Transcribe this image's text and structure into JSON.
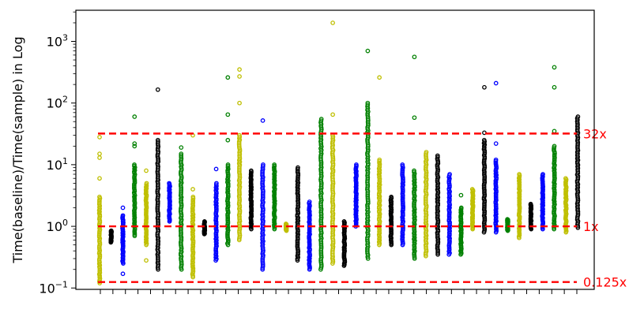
{
  "chart_data": {
    "type": "scatter",
    "title": "",
    "xlabel": "",
    "ylabel": "Time(baseline)/Time(sample) in Log",
    "yscale": "log",
    "ylim": [
      0.095,
      3200
    ],
    "y_ticks": [
      {
        "value": 0.1,
        "base": "10",
        "exp": "−1"
      },
      {
        "value": 1,
        "base": "10",
        "exp": "0"
      },
      {
        "value": 10,
        "base": "10",
        "exp": "1"
      },
      {
        "value": 100,
        "base": "10",
        "exp": "2"
      },
      {
        "value": 1000,
        "base": "10",
        "exp": "3"
      }
    ],
    "x_tick_count": 39,
    "x_tick_labels": "none",
    "marker": "open-circle",
    "grid": false,
    "legend": "none",
    "colors": {
      "y": "#bfbf00",
      "b": "#0000ff",
      "g": "#008000",
      "k": "#000000",
      "reference": "#ff0000"
    },
    "reference_lines": [
      {
        "value": 32,
        "label": "32x"
      },
      {
        "value": 1,
        "label": "1x"
      },
      {
        "value": 0.125,
        "label": "0.125x"
      }
    ],
    "series": [
      {
        "color": "y",
        "min": 0.12,
        "max": 3,
        "outliers": [
          6,
          13,
          15,
          28
        ]
      },
      {
        "color": "k",
        "min": 0.55,
        "max": 0.85,
        "outliers": []
      },
      {
        "color": "b",
        "min": 0.25,
        "max": 1.5,
        "outliers": [
          0.17,
          2
        ]
      },
      {
        "color": "g",
        "min": 0.7,
        "max": 10,
        "outliers": [
          20,
          22,
          60
        ]
      },
      {
        "color": "y",
        "min": 0.5,
        "max": 5,
        "outliers": [
          0.28,
          8
        ]
      },
      {
        "color": "k",
        "min": 0.2,
        "max": 25,
        "outliers": [
          165
        ]
      },
      {
        "color": "b",
        "min": 1.2,
        "max": 5,
        "outliers": []
      },
      {
        "color": "g",
        "min": 0.2,
        "max": 15,
        "outliers": [
          19
        ]
      },
      {
        "color": "y",
        "min": 0.15,
        "max": 3,
        "outliers": [
          4,
          30
        ]
      },
      {
        "color": "k",
        "min": 0.75,
        "max": 1.2,
        "outliers": []
      },
      {
        "color": "b",
        "min": 0.28,
        "max": 5,
        "outliers": [
          8.5
        ]
      },
      {
        "color": "g",
        "min": 0.5,
        "max": 10,
        "outliers": [
          25,
          65,
          260
        ]
      },
      {
        "color": "y",
        "min": 0.6,
        "max": 30,
        "outliers": [
          100,
          270,
          350
        ]
      },
      {
        "color": "k",
        "min": 0.9,
        "max": 8,
        "outliers": []
      },
      {
        "color": "b",
        "min": 0.2,
        "max": 10,
        "outliers": [
          52
        ]
      },
      {
        "color": "g",
        "min": 0.9,
        "max": 10,
        "outliers": []
      },
      {
        "color": "y",
        "min": 0.85,
        "max": 1.1,
        "outliers": []
      },
      {
        "color": "k",
        "min": 0.28,
        "max": 9,
        "outliers": []
      },
      {
        "color": "b",
        "min": 0.2,
        "max": 2.5,
        "outliers": []
      },
      {
        "color": "g",
        "min": 0.2,
        "max": 55,
        "outliers": []
      },
      {
        "color": "y",
        "min": 0.25,
        "max": 30,
        "outliers": [
          65,
          2000
        ]
      },
      {
        "color": "k",
        "min": 0.23,
        "max": 1.2,
        "outliers": []
      },
      {
        "color": "b",
        "min": 1.0,
        "max": 10,
        "outliers": []
      },
      {
        "color": "g",
        "min": 0.3,
        "max": 100,
        "outliers": [
          700
        ]
      },
      {
        "color": "y",
        "min": 0.5,
        "max": 12,
        "outliers": [
          260
        ]
      },
      {
        "color": "k",
        "min": 0.5,
        "max": 3,
        "outliers": []
      },
      {
        "color": "b",
        "min": 0.5,
        "max": 10,
        "outliers": []
      },
      {
        "color": "g",
        "min": 0.3,
        "max": 8,
        "outliers": [
          58,
          560
        ]
      },
      {
        "color": "y",
        "min": 0.33,
        "max": 16,
        "outliers": []
      },
      {
        "color": "k",
        "min": 0.35,
        "max": 14,
        "outliers": []
      },
      {
        "color": "b",
        "min": 0.35,
        "max": 7,
        "outliers": []
      },
      {
        "color": "g",
        "min": 0.35,
        "max": 2,
        "outliers": [
          3.2
        ]
      },
      {
        "color": "y",
        "min": 0.9,
        "max": 4,
        "outliers": []
      },
      {
        "color": "k",
        "min": 0.8,
        "max": 25,
        "outliers": [
          33,
          180
        ]
      },
      {
        "color": "b",
        "min": 0.8,
        "max": 12,
        "outliers": [
          22,
          210
        ]
      },
      {
        "color": "g",
        "min": 0.85,
        "max": 1.3,
        "outliers": []
      },
      {
        "color": "y",
        "min": 0.65,
        "max": 7,
        "outliers": []
      },
      {
        "color": "k",
        "min": 0.9,
        "max": 2.3,
        "outliers": []
      },
      {
        "color": "b",
        "min": 0.9,
        "max": 7,
        "outliers": []
      },
      {
        "color": "g",
        "min": 0.9,
        "max": 20,
        "outliers": [
          35,
          180,
          380
        ]
      },
      {
        "color": "y",
        "min": 0.8,
        "max": 6,
        "outliers": []
      },
      {
        "color": "k",
        "min": 0.95,
        "max": 60,
        "outliers": []
      }
    ]
  }
}
